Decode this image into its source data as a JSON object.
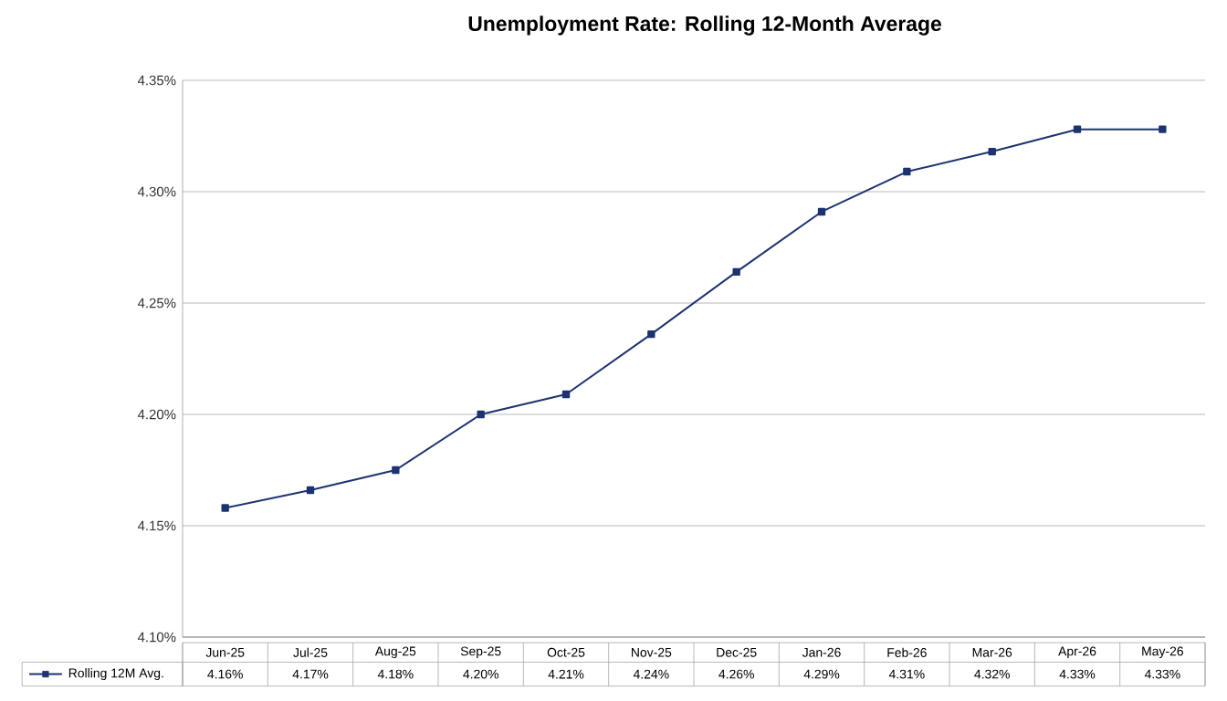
{
  "chart_data": {
    "type": "line",
    "title": "Unemployment Rate: Rolling  12-Month Average",
    "categories": [
      "Jun-25",
      "Jul-25",
      "Aug-25",
      "Sep-25",
      "Oct-25",
      "Nov-25",
      "Dec-25",
      "Jan-26",
      "Feb-26",
      "Mar-26",
      "Apr-26",
      "May-26"
    ],
    "series": [
      {
        "name": "Rolling 12M Avg.",
        "color": "#1c3370",
        "values": [
          4.158,
          4.166,
          4.175,
          4.2,
          4.209,
          4.236,
          4.264,
          4.291,
          4.309,
          4.318,
          4.328,
          4.328
        ],
        "value_labels": [
          "4.16%",
          "4.17%",
          "4.18%",
          "4.20%",
          "4.21%",
          "4.24%",
          "4.26%",
          "4.29%",
          "4.31%",
          "4.32%",
          "4.33%",
          "4.33%"
        ]
      }
    ],
    "ylim": [
      4.1,
      4.35
    ],
    "yticks": [
      {
        "value": 4.1,
        "label": "4.10%"
      },
      {
        "value": 4.15,
        "label": "4.15%"
      },
      {
        "value": 4.2,
        "label": "4.20%"
      },
      {
        "value": 4.25,
        "label": "4.25%"
      },
      {
        "value": 4.3,
        "label": "4.30%"
      },
      {
        "value": 4.35,
        "label": "4.35%"
      }
    ],
    "grid": "y",
    "marker": "square",
    "line_style": "solid",
    "legend": "bottom"
  }
}
